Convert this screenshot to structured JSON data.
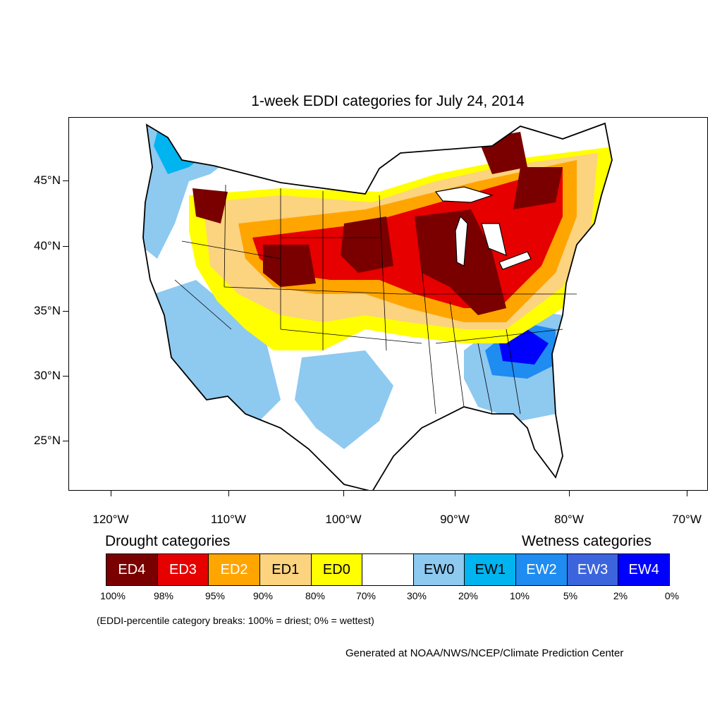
{
  "title": "1-week EDDI categories for July 24, 2014",
  "lat_labels": [
    "45°N",
    "40°N",
    "35°N",
    "30°N",
    "25°N"
  ],
  "lon_labels": [
    "120°W",
    "110°W",
    "100°W",
    "90°W",
    "80°W",
    "70°W"
  ],
  "legend": {
    "drought_heading": "Drought categories",
    "wetness_heading": "Wetness categories",
    "categories": [
      {
        "label": "ED4",
        "color": "#7a0000",
        "text_color": "#ffffff"
      },
      {
        "label": "ED3",
        "color": "#e60000",
        "text_color": "#ffffff"
      },
      {
        "label": "ED2",
        "color": "#ffa500",
        "text_color": "#ffffff"
      },
      {
        "label": "ED1",
        "color": "#fcd37f",
        "text_color": "#000000"
      },
      {
        "label": "ED0",
        "color": "#ffff00",
        "text_color": "#000000"
      },
      {
        "label": "",
        "color": "#ffffff",
        "text_color": "#000000"
      },
      {
        "label": "EW0",
        "color": "#8ec9f0",
        "text_color": "#000000"
      },
      {
        "label": "EW1",
        "color": "#00b4f0",
        "text_color": "#000000"
      },
      {
        "label": "EW2",
        "color": "#1e8cf0",
        "text_color": "#ffffff"
      },
      {
        "label": "EW3",
        "color": "#3c64dc",
        "text_color": "#ffffff"
      },
      {
        "label": "EW4",
        "color": "#0000ff",
        "text_color": "#ffffff"
      }
    ],
    "breaks": [
      "100%",
      "98%",
      "95%",
      "90%",
      "80%",
      "70%",
      "30%",
      "20%",
      "10%",
      "5%",
      "2%",
      "0%"
    ]
  },
  "breaks_note": "(EDDI-percentile category breaks: 100% = driest; 0% = wettest)",
  "credit": "Generated at NOAA/NWS/NCEP/Climate Prediction Center"
}
